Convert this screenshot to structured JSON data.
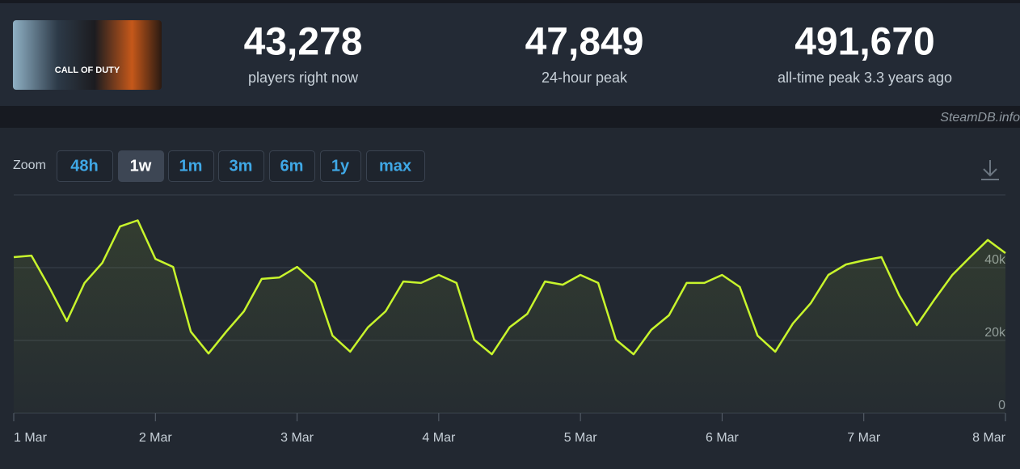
{
  "header": {
    "image_text": "CALL OF DUTY",
    "stats": [
      {
        "value": "43,278",
        "label": "players right now"
      },
      {
        "value": "47,849",
        "label": "24-hour peak"
      },
      {
        "value": "491,670",
        "label": "all-time peak 3.3 years ago"
      }
    ],
    "credit": "SteamDB.info"
  },
  "zoom": {
    "label": "Zoom",
    "buttons": [
      "48h",
      "1w",
      "1m",
      "3m",
      "6m",
      "1y",
      "max"
    ],
    "active": 1
  },
  "chart_data": {
    "type": "line",
    "color": "#c8f52c",
    "categories": [
      "1 Mar",
      null,
      null,
      null,
      null,
      null,
      null,
      null,
      "2 Mar",
      null,
      null,
      null,
      null,
      null,
      null,
      null,
      "3 Mar",
      null,
      null,
      null,
      null,
      null,
      null,
      null,
      "4 Mar",
      null,
      null,
      null,
      null,
      null,
      null,
      null,
      "5 Mar",
      null,
      null,
      null,
      null,
      null,
      null,
      null,
      "6 Mar",
      null,
      null,
      null,
      null,
      null,
      null,
      null,
      "7 Mar",
      null,
      null,
      null,
      null,
      null,
      null,
      null,
      "8 Mar"
    ],
    "values": [
      42900,
      43300,
      34700,
      25300,
      35800,
      41300,
      51300,
      53000,
      42400,
      40200,
      22400,
      16400,
      22400,
      28000,
      36900,
      37300,
      40200,
      35800,
      21300,
      16900,
      23600,
      28000,
      36200,
      35800,
      38000,
      35800,
      20200,
      16200,
      23600,
      27300,
      36200,
      35300,
      38000,
      35800,
      20200,
      16200,
      22900,
      26900,
      35800,
      35800,
      38000,
      34700,
      21300,
      16900,
      24700,
      30200,
      38000,
      40900,
      42000,
      42900,
      32400,
      24200,
      31300,
      38000,
      42900,
      47600,
      44000
    ],
    "ylim": [
      0,
      60000
    ],
    "yticks": [
      {
        "value": 0,
        "label": "0"
      },
      {
        "value": 20000,
        "label": "20k"
      },
      {
        "value": 40000,
        "label": "40k"
      }
    ],
    "grid": true
  }
}
